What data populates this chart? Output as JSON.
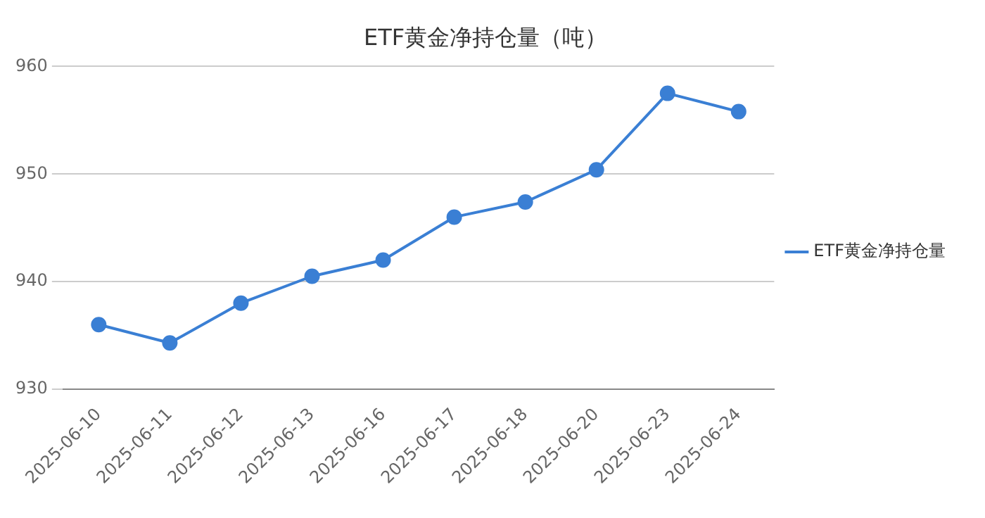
{
  "chart_data": {
    "type": "line",
    "title": "ETF黄金净持仓量（吨）",
    "categories": [
      "2025-06-10",
      "2025-06-11",
      "2025-06-12",
      "2025-06-13",
      "2025-06-16",
      "2025-06-17",
      "2025-06-18",
      "2025-06-20",
      "2025-06-23",
      "2025-06-24"
    ],
    "series": [
      {
        "name": "ETF黄金净持仓量",
        "color": "#3a7fd4",
        "values": [
          936.0,
          934.3,
          938.0,
          940.5,
          942.0,
          946.0,
          947.4,
          950.4,
          957.5,
          955.8
        ]
      }
    ],
    "ylim": [
      930,
      960
    ],
    "yticks": [
      930,
      940,
      950,
      960
    ],
    "grid": "y",
    "legend": "right",
    "marker": "circle",
    "line_style": "solid"
  }
}
